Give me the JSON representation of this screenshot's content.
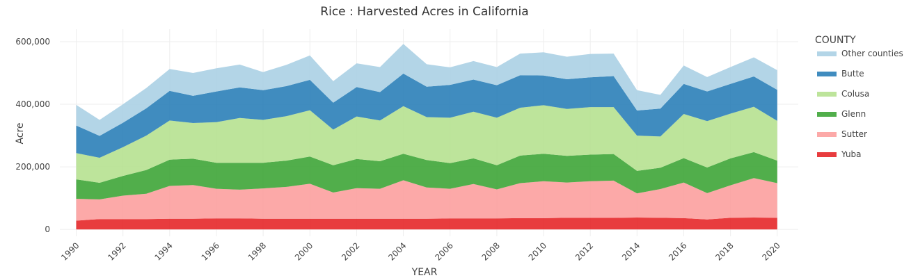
{
  "chart_data": {
    "type": "area",
    "title": "Rice : Harvested Acres in California",
    "xlabel": "YEAR",
    "ylabel": "Acre",
    "legend_title": "COUNTY",
    "legend_position": "right",
    "grid": true,
    "stacked": true,
    "xlim": [
      1989.3,
      2020.9
    ],
    "ylim": [
      -22000,
      640000
    ],
    "x": [
      1990,
      1991,
      1992,
      1993,
      1994,
      1995,
      1996,
      1997,
      1998,
      1999,
      2000,
      2001,
      2002,
      2003,
      2004,
      2005,
      2006,
      2007,
      2008,
      2009,
      2010,
      2011,
      2012,
      2013,
      2014,
      2015,
      2016,
      2017,
      2018,
      2019,
      2020
    ],
    "x_ticks": [
      1990,
      1992,
      1994,
      1996,
      1998,
      2000,
      2002,
      2004,
      2006,
      2008,
      2010,
      2012,
      2014,
      2016,
      2018,
      2020
    ],
    "y_ticks": [
      {
        "value": 0,
        "label": "0"
      },
      {
        "value": 200000,
        "label": "200,000"
      },
      {
        "value": 400000,
        "label": "400,000"
      },
      {
        "value": 600000,
        "label": "600,000"
      }
    ],
    "series": [
      {
        "name": "Yuba",
        "color": "#e41a1c",
        "values": [
          28000,
          33000,
          33000,
          33000,
          34000,
          34000,
          35000,
          35000,
          34000,
          34000,
          34000,
          34000,
          34000,
          34000,
          34000,
          34000,
          35000,
          35000,
          35000,
          36000,
          36000,
          37000,
          37000,
          37000,
          38000,
          37000,
          36000,
          32000,
          37000,
          38000,
          37000
        ]
      },
      {
        "name": "Sutter",
        "color": "#fb9a99",
        "values": [
          70000,
          63000,
          75000,
          81000,
          105000,
          108000,
          95000,
          92000,
          97000,
          102000,
          112000,
          84000,
          98000,
          96000,
          123000,
          100000,
          95000,
          110000,
          93000,
          112000,
          118000,
          113000,
          117000,
          119000,
          77000,
          92000,
          114000,
          84000,
          104000,
          126000,
          111000
        ]
      },
      {
        "name": "Glenn",
        "color": "#33a02c",
        "values": [
          62000,
          53000,
          63000,
          76000,
          84000,
          84000,
          83000,
          86000,
          82000,
          84000,
          87000,
          87000,
          93000,
          88000,
          85000,
          88000,
          82000,
          82000,
          77000,
          88000,
          88000,
          85000,
          85000,
          85000,
          72000,
          68000,
          78000,
          82000,
          86000,
          83000,
          72000
        ]
      },
      {
        "name": "Colusa",
        "color": "#b2df8a",
        "values": [
          84000,
          80000,
          92000,
          110000,
          125000,
          114000,
          130000,
          143000,
          137000,
          142000,
          148000,
          114000,
          136000,
          130000,
          152000,
          137000,
          145000,
          149000,
          152000,
          153000,
          155000,
          150000,
          152000,
          150000,
          113000,
          100000,
          141000,
          148000,
          143000,
          145000,
          127000
        ]
      },
      {
        "name": "Butte",
        "color": "#1f78b4",
        "values": [
          88000,
          70000,
          78000,
          87000,
          95000,
          87000,
          98000,
          98000,
          95000,
          96000,
          97000,
          86000,
          94000,
          91000,
          104000,
          97000,
          105000,
          103000,
          104000,
          104000,
          95000,
          95000,
          95000,
          99000,
          80000,
          89000,
          96000,
          95000,
          95000,
          97000,
          99000
        ]
      },
      {
        "name": "Other counties",
        "color": "#a6cee3",
        "values": [
          66000,
          51000,
          59000,
          65000,
          70000,
          73000,
          74000,
          73000,
          58000,
          68000,
          78000,
          69000,
          76000,
          80000,
          95000,
          72000,
          56000,
          59000,
          58000,
          69000,
          74000,
          72000,
          75000,
          72000,
          65000,
          44000,
          59000,
          46000,
          54000,
          61000,
          63000
        ]
      }
    ]
  }
}
